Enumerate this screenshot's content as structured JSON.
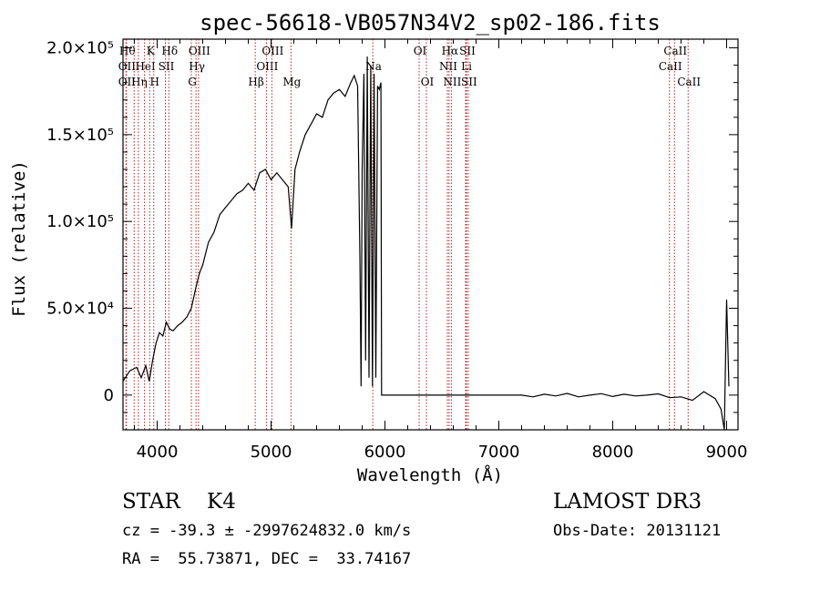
{
  "chart_data": {
    "type": "line",
    "title": "spec-56618-VB057N34V2_sp02-186.fits",
    "xlabel": "Wavelength (Å)",
    "ylabel": "Flux (relative)",
    "xlim": [
      3700,
      9100
    ],
    "ylim": [
      -20000,
      205000
    ],
    "xticks": [
      {
        "value": 4000,
        "label": "4000"
      },
      {
        "value": 5000,
        "label": "5000"
      },
      {
        "value": 6000,
        "label": "6000"
      },
      {
        "value": 7000,
        "label": "7000"
      },
      {
        "value": 8000,
        "label": "8000"
      },
      {
        "value": 9000,
        "label": "9000"
      }
    ],
    "yticks": [
      {
        "value": 0,
        "label": "0"
      },
      {
        "value": 50000,
        "label": "5.0×10⁴"
      },
      {
        "value": 100000,
        "label": "1.0×10⁵"
      },
      {
        "value": 150000,
        "label": "1.5×10⁵"
      },
      {
        "value": 200000,
        "label": "2.0×10⁵"
      }
    ],
    "line_color": "#000000",
    "marker_color": "#b22222",
    "spectrum": [
      [
        3700,
        8000
      ],
      [
        3760,
        14000
      ],
      [
        3820,
        16000
      ],
      [
        3860,
        10000
      ],
      [
        3900,
        17000
      ],
      [
        3930,
        8000
      ],
      [
        3960,
        20000
      ],
      [
        3990,
        30000
      ],
      [
        4020,
        36000
      ],
      [
        4050,
        34000
      ],
      [
        4080,
        42000
      ],
      [
        4110,
        38000
      ],
      [
        4140,
        37000
      ],
      [
        4180,
        40000
      ],
      [
        4220,
        42000
      ],
      [
        4260,
        45000
      ],
      [
        4300,
        50000
      ],
      [
        4340,
        62000
      ],
      [
        4370,
        70000
      ],
      [
        4400,
        75000
      ],
      [
        4450,
        88000
      ],
      [
        4500,
        94000
      ],
      [
        4550,
        104000
      ],
      [
        4600,
        108000
      ],
      [
        4650,
        112000
      ],
      [
        4700,
        116000
      ],
      [
        4750,
        118000
      ],
      [
        4800,
        122000
      ],
      [
        4850,
        118000
      ],
      [
        4900,
        128000
      ],
      [
        4950,
        130000
      ],
      [
        5000,
        124000
      ],
      [
        5050,
        128000
      ],
      [
        5100,
        124000
      ],
      [
        5150,
        120000
      ],
      [
        5180,
        96000
      ],
      [
        5210,
        130000
      ],
      [
        5250,
        140000
      ],
      [
        5300,
        150000
      ],
      [
        5350,
        156000
      ],
      [
        5400,
        162000
      ],
      [
        5450,
        160000
      ],
      [
        5500,
        170000
      ],
      [
        5550,
        174000
      ],
      [
        5600,
        176000
      ],
      [
        5650,
        172000
      ],
      [
        5700,
        180000
      ],
      [
        5730,
        184000
      ],
      [
        5760,
        178000
      ],
      [
        5780,
        80000
      ],
      [
        5790,
        5000
      ],
      [
        5800,
        130000
      ],
      [
        5815,
        185000
      ],
      [
        5830,
        20000
      ],
      [
        5845,
        195000
      ],
      [
        5860,
        10000
      ],
      [
        5875,
        190000
      ],
      [
        5890,
        5000
      ],
      [
        5905,
        185000
      ],
      [
        5920,
        10000
      ],
      [
        5935,
        178000
      ],
      [
        5950,
        176000
      ],
      [
        5965,
        180000
      ],
      [
        5970,
        0
      ],
      [
        6000,
        0
      ],
      [
        6500,
        0
      ],
      [
        7000,
        0
      ],
      [
        7190,
        0
      ],
      [
        7200,
        0
      ],
      [
        7300,
        -1000
      ],
      [
        7400,
        500
      ],
      [
        7500,
        -500
      ],
      [
        7600,
        1000
      ],
      [
        7700,
        -1000
      ],
      [
        7800,
        0
      ],
      [
        7900,
        800
      ],
      [
        8000,
        -800
      ],
      [
        8100,
        500
      ],
      [
        8200,
        -500
      ],
      [
        8300,
        0
      ],
      [
        8400,
        700
      ],
      [
        8500,
        -1500
      ],
      [
        8600,
        -1000
      ],
      [
        8700,
        -3000
      ],
      [
        8800,
        2000
      ],
      [
        8900,
        -2000
      ],
      [
        8950,
        -8000
      ],
      [
        8980,
        -20000
      ],
      [
        8990,
        20000
      ],
      [
        9000,
        55000
      ],
      [
        9020,
        5000
      ]
    ],
    "lines": [
      {
        "wl": 3730,
        "label": "Hθ",
        "row": 0
      },
      {
        "wl": 3727,
        "label": "OII",
        "row": 1
      },
      {
        "wl": 3727,
        "label": "OII",
        "row": 2
      },
      {
        "wl": 3798,
        "label": "",
        "row": 1
      },
      {
        "wl": 3835,
        "label": "Hη",
        "row": 2
      },
      {
        "wl": 3889,
        "label": "HeI",
        "row": 1
      },
      {
        "wl": 3934,
        "label": "K",
        "row": 0
      },
      {
        "wl": 3970,
        "label": "H",
        "row": 2
      },
      {
        "wl": 4072,
        "label": "SII",
        "row": 1
      },
      {
        "wl": 4102,
        "label": "Hδ",
        "row": 0
      },
      {
        "wl": 4300,
        "label": "G",
        "row": 2
      },
      {
        "wl": 4341,
        "label": "Hγ",
        "row": 1
      },
      {
        "wl": 4363,
        "label": "OIII",
        "row": 0
      },
      {
        "wl": 4861,
        "label": "Hβ",
        "row": 2
      },
      {
        "wl": 4959,
        "label": "OIII",
        "row": 1
      },
      {
        "wl": 5007,
        "label": "OIII",
        "row": 0
      },
      {
        "wl": 5175,
        "label": "Mg",
        "row": 2
      },
      {
        "wl": 5893,
        "label": "Na",
        "row": 1
      },
      {
        "wl": 6300,
        "label": "OI",
        "row": 0
      },
      {
        "wl": 6364,
        "label": "OI",
        "row": 2
      },
      {
        "wl": 6548,
        "label": "NII",
        "row": 1
      },
      {
        "wl": 6563,
        "label": "Hα",
        "row": 0
      },
      {
        "wl": 6583,
        "label": "NII",
        "row": 2
      },
      {
        "wl": 6708,
        "label": "Li",
        "row": 1
      },
      {
        "wl": 6716,
        "label": "SII",
        "row": 0
      },
      {
        "wl": 6731,
        "label": "SII",
        "row": 2
      },
      {
        "wl": 8498,
        "label": "CaII",
        "row": 1
      },
      {
        "wl": 8542,
        "label": "CaII",
        "row": 0
      },
      {
        "wl": 8662,
        "label": "CaII",
        "row": 2
      }
    ]
  },
  "info": {
    "classification": "STAR    K4",
    "survey": "LAMOST DR3",
    "cz": "cz = -39.3 ± -2997624832.0 km/s",
    "obs_date": "Obs-Date: 20131121",
    "coords": "RA =  55.73871, DEC =  33.74167"
  }
}
